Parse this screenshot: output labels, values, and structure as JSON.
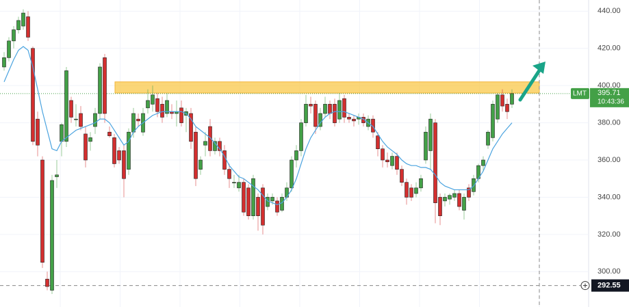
{
  "chart_data": {
    "type": "candlestick",
    "ticker": "LMT",
    "last_price": 395.71,
    "time": "10:43:36",
    "crosshair_price": 292.55,
    "ylim": [
      281,
      446
    ],
    "yticks": [
      {
        "value": 440,
        "label": "440.00"
      },
      {
        "value": 420,
        "label": "420.00"
      },
      {
        "value": 400,
        "label": "400.00"
      },
      {
        "value": 380,
        "label": "380.00"
      },
      {
        "value": 360,
        "label": "360.00"
      },
      {
        "value": 340,
        "label": "340.00"
      },
      {
        "value": 320,
        "label": "320.00"
      },
      {
        "value": 300,
        "label": "300.00"
      }
    ],
    "grid": true,
    "up_color": "#43a047",
    "down_color": "#d32f2f",
    "ma_color": "#4aa3df",
    "zone_color": "#f9c84a",
    "resistance_zone": {
      "low": 396,
      "high": 402
    },
    "open": [
      410,
      415,
      424,
      430,
      432,
      437,
      420,
      382,
      360,
      296,
      290,
      351,
      370,
      370,
      392,
      382,
      385,
      374,
      370,
      378,
      385,
      415,
      375,
      372,
      365,
      365,
      355,
      375,
      382,
      375,
      388,
      390,
      393,
      390,
      385,
      386,
      385,
      388,
      384,
      385,
      375,
      355,
      368,
      378,
      365,
      370,
      365,
      355,
      348,
      345,
      348,
      345,
      330,
      340,
      345,
      335,
      338,
      338,
      333,
      340,
      345,
      360,
      365,
      380,
      390,
      390,
      378,
      385,
      390,
      390,
      382,
      393,
      383,
      382,
      382,
      383,
      378,
      382,
      373,
      366,
      360,
      357,
      362,
      355,
      348,
      345,
      342,
      345,
      360,
      365,
      380,
      340,
      338,
      339,
      340,
      342,
      333,
      345,
      343,
      350,
      357,
      368,
      372,
      382,
      395,
      390,
      390
    ],
    "high": [
      418,
      426,
      432,
      437,
      441,
      440,
      421,
      386,
      362,
      300,
      352,
      360,
      380,
      410,
      394,
      390,
      389,
      378,
      375,
      388,
      412,
      417,
      378,
      374,
      367,
      368,
      377,
      388,
      385,
      388,
      398,
      400,
      396,
      394,
      396,
      390,
      392,
      392,
      388,
      388,
      378,
      362,
      375,
      382,
      372,
      372,
      368,
      358,
      352,
      352,
      350,
      347,
      352,
      342,
      347,
      342,
      342,
      340,
      342,
      348,
      362,
      368,
      382,
      395,
      394,
      392,
      388,
      394,
      392,
      393,
      396,
      395,
      385,
      384,
      385,
      385,
      384,
      384,
      375,
      368,
      364,
      364,
      364,
      357,
      350,
      347,
      348,
      352,
      378,
      385,
      382,
      342,
      342,
      342,
      344,
      344,
      342,
      347,
      352,
      358,
      362,
      376,
      392,
      396,
      398,
      393,
      398
    ],
    "low": [
      408,
      413,
      420,
      428,
      430,
      424,
      368,
      362,
      302,
      290,
      288,
      345,
      362,
      367,
      380,
      378,
      376,
      356,
      365,
      374,
      382,
      380,
      372,
      356,
      358,
      340,
      352,
      372,
      378,
      373,
      385,
      386,
      383,
      380,
      383,
      382,
      378,
      378,
      375,
      366,
      346,
      352,
      362,
      362,
      363,
      362,
      352,
      345,
      345,
      343,
      330,
      328,
      328,
      322,
      320,
      333,
      336,
      330,
      332,
      338,
      343,
      356,
      362,
      378,
      385,
      374,
      376,
      383,
      382,
      378,
      380,
      380,
      380,
      378,
      379,
      378,
      376,
      372,
      362,
      356,
      356,
      355,
      352,
      346,
      336,
      338,
      340,
      343,
      358,
      355,
      326,
      325,
      335,
      336,
      338,
      333,
      328,
      338,
      341,
      348,
      354,
      366,
      370,
      380,
      386,
      382,
      388
    ],
    "close": [
      415,
      424,
      430,
      435,
      439,
      426,
      370,
      368,
      305,
      292,
      349,
      352,
      379,
      408,
      383,
      382,
      378,
      360,
      372,
      385,
      410,
      385,
      373,
      358,
      360,
      350,
      375,
      385,
      381,
      385,
      392,
      395,
      386,
      383,
      392,
      385,
      386,
      380,
      386,
      370,
      350,
      360,
      370,
      365,
      370,
      365,
      355,
      350,
      348,
      348,
      332,
      330,
      350,
      330,
      325,
      340,
      340,
      332,
      340,
      345,
      360,
      365,
      380,
      390,
      389,
      378,
      385,
      390,
      385,
      380,
      392,
      383,
      382,
      381,
      383,
      380,
      382,
      375,
      366,
      360,
      359,
      362,
      355,
      348,
      340,
      340,
      345,
      350,
      375,
      382,
      337,
      330,
      340,
      341,
      342,
      335,
      340,
      340,
      350,
      357,
      360,
      375,
      390,
      395,
      389,
      386,
      395.71
    ],
    "ma": [
      402,
      408,
      414,
      419,
      421,
      419,
      410,
      398,
      386,
      376,
      366,
      365,
      370,
      372,
      374,
      376,
      377,
      378,
      379,
      380,
      382,
      382,
      380,
      376,
      372,
      368,
      370,
      375,
      378,
      380,
      382,
      384,
      385,
      386,
      386,
      386,
      386,
      386,
      385,
      382,
      378,
      376,
      374,
      372,
      369,
      366,
      362,
      357,
      354,
      351,
      350,
      348,
      346,
      344,
      341,
      338,
      337,
      336,
      337,
      340,
      344,
      350,
      358,
      366,
      372,
      376,
      380,
      383,
      385,
      386,
      386,
      386,
      385,
      384,
      383,
      382,
      380,
      378,
      374,
      370,
      367,
      365,
      363,
      360,
      358,
      357,
      357,
      356,
      356,
      355,
      352,
      348,
      346,
      345,
      344,
      344,
      344,
      344,
      346,
      350,
      354,
      360,
      366,
      370,
      374,
      377,
      380
    ]
  }
}
